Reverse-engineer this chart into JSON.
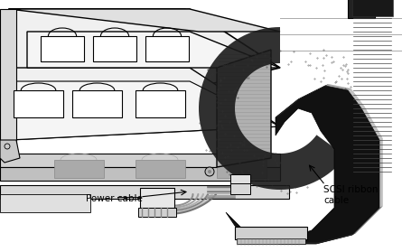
{
  "bg_color": "#ffffff",
  "fig_width": 4.45,
  "fig_height": 2.79,
  "dpi": 100,
  "labels": {
    "power_cable": "Power cable",
    "scsi_cable": "SCSI ribbon\ncable"
  },
  "line_color": "#000000",
  "gray_light": "#e8e8e8",
  "gray_mid": "#c0c0c0",
  "gray_dark": "#808080",
  "gray_shelf": "#b8b8b8"
}
